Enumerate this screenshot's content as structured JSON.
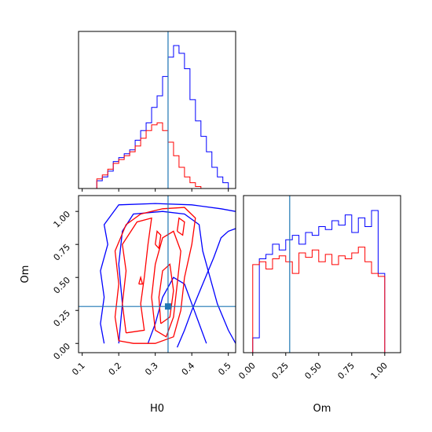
{
  "colors": {
    "blue": "#0000ff",
    "red": "#ff0000",
    "truth": "#1f77b4",
    "axes": "#000000"
  },
  "chart_data": [
    {
      "type": "histogram",
      "panel": "H0 marginal",
      "xlim": [
        0.09,
        0.52
      ],
      "x_ticks": [
        0.1,
        0.2,
        0.3,
        0.4,
        0.5
      ],
      "y_ticks_shown": false,
      "bin_edges": [
        0.14,
        0.155,
        0.17,
        0.185,
        0.2,
        0.215,
        0.23,
        0.245,
        0.26,
        0.275,
        0.29,
        0.305,
        0.32,
        0.335,
        0.35,
        0.365,
        0.38,
        0.395,
        0.41,
        0.425,
        0.44,
        0.455,
        0.47,
        0.485,
        0.5
      ],
      "series": [
        {
          "color": "blue",
          "values": [
            4,
            6,
            9,
            14,
            16,
            18,
            20,
            25,
            30,
            34,
            42,
            48,
            58,
            68,
            74,
            70,
            62,
            46,
            35,
            27,
            19,
            11,
            6,
            3
          ]
        },
        {
          "color": "red",
          "values": [
            5,
            7,
            10,
            13,
            15,
            17,
            19,
            22,
            26,
            30,
            33,
            34,
            30,
            24,
            17,
            11,
            6,
            3,
            1,
            0,
            0,
            0,
            0,
            0
          ]
        }
      ],
      "truth_x": 0.335
    },
    {
      "type": "contour",
      "panel": "H0 vs Om",
      "xlabel": "H0",
      "ylabel": "Om",
      "xlim": [
        0.09,
        0.52
      ],
      "ylim": [
        -0.07,
        1.12
      ],
      "x_ticks": [
        0.1,
        0.2,
        0.3,
        0.4,
        0.5
      ],
      "y_ticks": [
        0.0,
        0.25,
        0.5,
        0.75,
        1.0
      ],
      "x_tick_labels": [
        "0.1",
        "0.2",
        "0.3",
        "0.4",
        "0.5"
      ],
      "y_tick_labels": [
        "0.00",
        "0.25",
        "0.50",
        "0.75",
        "1.00"
      ],
      "truth": {
        "x": 0.335,
        "y": 0.28
      },
      "blue_contours": [
        [
          [
            0.16,
            0.0
          ],
          [
            0.15,
            0.15
          ],
          [
            0.16,
            0.35
          ],
          [
            0.15,
            0.55
          ],
          [
            0.17,
            0.75
          ],
          [
            0.16,
            0.9
          ],
          [
            0.2,
            1.05
          ],
          [
            0.3,
            1.06
          ],
          [
            0.4,
            1.05
          ],
          [
            0.48,
            1.02
          ],
          [
            0.52,
            1.0
          ]
        ],
        [
          [
            0.2,
            0.0
          ],
          [
            0.21,
            0.3
          ],
          [
            0.2,
            0.6
          ],
          [
            0.21,
            0.85
          ],
          [
            0.24,
            0.98
          ],
          [
            0.32,
            1.0
          ],
          [
            0.38,
            0.98
          ],
          [
            0.42,
            0.9
          ],
          [
            0.43,
            0.7
          ],
          [
            0.45,
            0.5
          ],
          [
            0.47,
            0.3
          ],
          [
            0.5,
            0.1
          ],
          [
            0.52,
            0.0
          ]
        ],
        [
          [
            0.28,
            0.0
          ],
          [
            0.3,
            0.15
          ],
          [
            0.32,
            0.35
          ],
          [
            0.35,
            0.5
          ],
          [
            0.38,
            0.45
          ],
          [
            0.4,
            0.3
          ],
          [
            0.42,
            0.15
          ],
          [
            0.44,
            0.0
          ]
        ],
        [
          [
            0.36,
            -0.03
          ],
          [
            0.38,
            0.1
          ],
          [
            0.4,
            0.25
          ],
          [
            0.43,
            0.45
          ],
          [
            0.46,
            0.65
          ],
          [
            0.48,
            0.8
          ],
          [
            0.5,
            0.85
          ],
          [
            0.52,
            0.87
          ]
        ]
      ],
      "red_contours": [
        [
          [
            0.2,
            0.02
          ],
          [
            0.19,
            0.2
          ],
          [
            0.2,
            0.45
          ],
          [
            0.19,
            0.7
          ],
          [
            0.22,
            0.9
          ],
          [
            0.26,
            0.98
          ],
          [
            0.32,
            1.02
          ],
          [
            0.38,
            1.03
          ],
          [
            0.41,
            0.95
          ],
          [
            0.4,
            0.75
          ],
          [
            0.38,
            0.5
          ],
          [
            0.37,
            0.25
          ],
          [
            0.35,
            0.05
          ],
          [
            0.3,
            0.0
          ],
          [
            0.24,
            0.0
          ],
          [
            0.2,
            0.02
          ]
        ],
        [
          [
            0.22,
            0.08
          ],
          [
            0.21,
            0.3
          ],
          [
            0.22,
            0.55
          ],
          [
            0.21,
            0.75
          ],
          [
            0.25,
            0.92
          ],
          [
            0.29,
            0.95
          ],
          [
            0.28,
            0.75
          ],
          [
            0.27,
            0.5
          ],
          [
            0.26,
            0.3
          ],
          [
            0.27,
            0.1
          ],
          [
            0.22,
            0.08
          ]
        ],
        [
          [
            0.3,
            0.1
          ],
          [
            0.29,
            0.35
          ],
          [
            0.3,
            0.6
          ],
          [
            0.32,
            0.8
          ],
          [
            0.35,
            0.85
          ],
          [
            0.37,
            0.7
          ],
          [
            0.36,
            0.45
          ],
          [
            0.35,
            0.2
          ],
          [
            0.33,
            0.05
          ],
          [
            0.3,
            0.1
          ]
        ],
        [
          [
            0.315,
            0.15
          ],
          [
            0.31,
            0.35
          ],
          [
            0.32,
            0.55
          ],
          [
            0.34,
            0.6
          ],
          [
            0.35,
            0.4
          ],
          [
            0.34,
            0.2
          ],
          [
            0.315,
            0.15
          ]
        ],
        [
          [
            0.36,
            0.85
          ],
          [
            0.365,
            0.95
          ],
          [
            0.38,
            0.92
          ],
          [
            0.375,
            0.82
          ],
          [
            0.36,
            0.85
          ]
        ],
        [
          [
            0.3,
            0.75
          ],
          [
            0.305,
            0.85
          ],
          [
            0.315,
            0.82
          ],
          [
            0.31,
            0.72
          ],
          [
            0.3,
            0.75
          ]
        ],
        [
          [
            0.255,
            0.45
          ],
          [
            0.26,
            0.5
          ],
          [
            0.265,
            0.45
          ],
          [
            0.255,
            0.45
          ]
        ]
      ]
    },
    {
      "type": "histogram",
      "panel": "Om marginal",
      "xlabel": "Om",
      "xlim": [
        -0.07,
        1.12
      ],
      "x_ticks": [
        0.0,
        0.25,
        0.5,
        0.75,
        1.0
      ],
      "x_tick_labels": [
        "0.00",
        "0.25",
        "0.50",
        "0.75",
        "1.00"
      ],
      "y_ticks_shown": false,
      "bin_edges": [
        0.0,
        0.05,
        0.1,
        0.15,
        0.2,
        0.25,
        0.3,
        0.35,
        0.4,
        0.45,
        0.5,
        0.55,
        0.6,
        0.65,
        0.7,
        0.75,
        0.8,
        0.85,
        0.9,
        0.95,
        1.0
      ],
      "series": [
        {
          "color": "blue",
          "values": [
            8,
            62,
            65,
            72,
            68,
            75,
            78,
            72,
            80,
            78,
            84,
            82,
            88,
            85,
            92,
            80,
            90,
            84,
            95,
            52
          ]
        },
        {
          "color": "red",
          "values": [
            58,
            60,
            55,
            62,
            64,
            60,
            52,
            66,
            63,
            68,
            60,
            65,
            58,
            64,
            62,
            66,
            70,
            60,
            52,
            50
          ]
        }
      ],
      "truth_x": 0.28
    }
  ]
}
